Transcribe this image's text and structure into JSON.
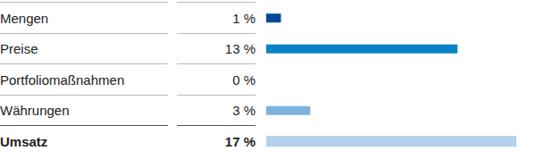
{
  "chart_data": {
    "type": "bar",
    "orientation": "horizontal",
    "categories": [
      "Mengen",
      "Preise",
      "Portfoliomaßnahmen",
      "Währungen",
      "Umsatz"
    ],
    "values": [
      1,
      13,
      0,
      3,
      17
    ],
    "value_labels": [
      "1 %",
      "13 %",
      "0 %",
      "3 %",
      "17 %"
    ],
    "colors": [
      "#004a96",
      "#0a83c6",
      "#0a83c6",
      "#7fb2df",
      "#b4d0ec"
    ],
    "data_labels": true,
    "tick_labels": false,
    "grid": false
  }
}
